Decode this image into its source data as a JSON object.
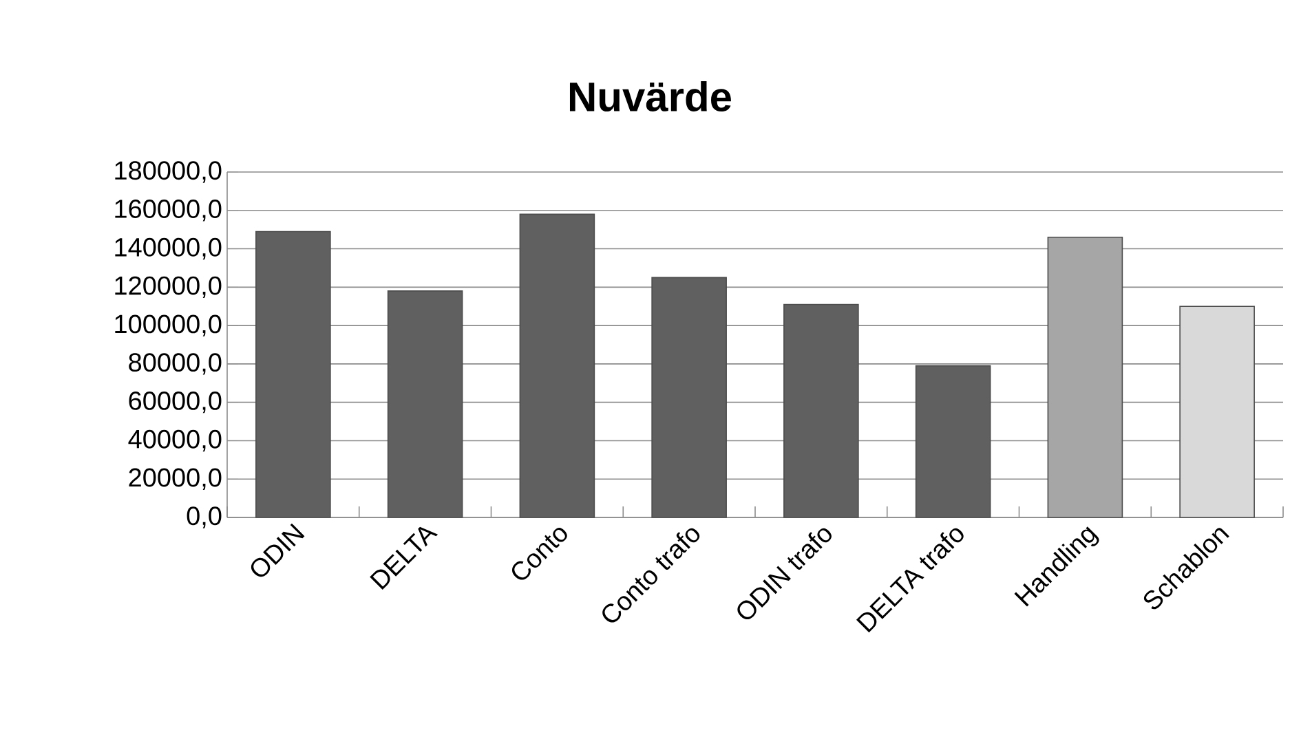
{
  "chart_data": {
    "type": "bar",
    "title": "Nuvärde",
    "categories": [
      "ODIN",
      "DELTA",
      "Conto",
      "Conto trafo",
      "ODIN trafo",
      "DELTA trafo",
      "Handling",
      "Schablon"
    ],
    "values": [
      149000,
      118000,
      158000,
      125000,
      111000,
      79000,
      146000,
      110000
    ],
    "colors": [
      "#606060",
      "#606060",
      "#606060",
      "#606060",
      "#606060",
      "#606060",
      "#a6a6a6",
      "#d9d9d9"
    ],
    "ylim": [
      0,
      180000
    ],
    "yticks": [
      {
        "value": 0,
        "label": "0,0"
      },
      {
        "value": 20000,
        "label": "20000,0"
      },
      {
        "value": 40000,
        "label": "40000,0"
      },
      {
        "value": 60000,
        "label": "60000,0"
      },
      {
        "value": 80000,
        "label": "80000,0"
      },
      {
        "value": 100000,
        "label": "100000,0"
      },
      {
        "value": 120000,
        "label": "120000,0"
      },
      {
        "value": 140000,
        "label": "140000,0"
      },
      {
        "value": 160000,
        "label": "160000,0"
      },
      {
        "value": 180000,
        "label": "180000,0"
      }
    ],
    "grid": "y"
  }
}
